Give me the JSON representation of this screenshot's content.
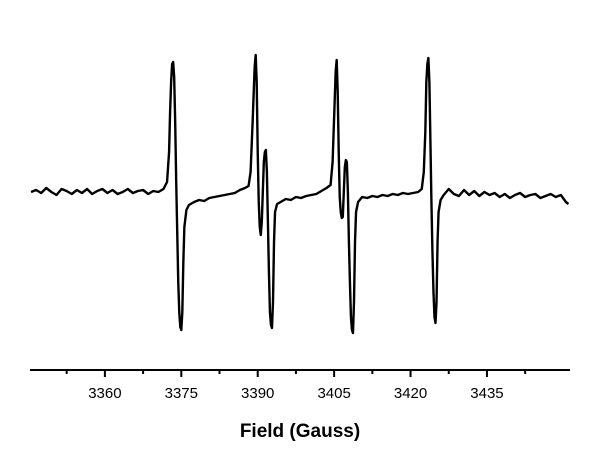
{
  "chart_data": {
    "type": "line",
    "xlabel": "Field (Gauss)",
    "color": "#000000",
    "xlim": [
      3345.3,
      3451.3
    ],
    "ylim": [
      -1.7,
      1.5
    ],
    "xticks": [
      3360,
      3375,
      3390,
      3405,
      3420,
      3435
    ],
    "xminorticks": [
      3352.5,
      3367.5,
      3382.5,
      3397.5,
      3412.5,
      3427.5,
      3442.5
    ],
    "x": [
      3345.5,
      3346.5,
      3347.5,
      3348.5,
      3349.5,
      3350.5,
      3351.5,
      3352.5,
      3353.5,
      3354.5,
      3355.5,
      3356.5,
      3357.5,
      3358.5,
      3359.5,
      3360.5,
      3361.5,
      3362.5,
      3363.5,
      3364.5,
      3365.5,
      3366.5,
      3367.5,
      3368.5,
      3369.5,
      3370.5,
      3371.5,
      3372.2,
      3372.6,
      3372.8,
      3373.0,
      3373.2,
      3373.4,
      3373.6,
      3373.8,
      3374.0,
      3374.2,
      3374.4,
      3374.6,
      3374.8,
      3375.0,
      3375.2,
      3375.4,
      3375.6,
      3376.0,
      3376.5,
      3377.5,
      3378.5,
      3379.5,
      3380.5,
      3381.5,
      3382.5,
      3383.5,
      3384.5,
      3385.5,
      3386.5,
      3387.5,
      3388.2,
      3388.6,
      3389.0,
      3389.4,
      3389.6,
      3389.8,
      3390.0,
      3390.2,
      3390.4,
      3390.6,
      3390.8,
      3391.0,
      3391.2,
      3391.4,
      3391.6,
      3391.8,
      3392.0,
      3392.2,
      3392.4,
      3392.6,
      3392.8,
      3393.0,
      3393.2,
      3393.4,
      3393.8,
      3394.5,
      3395.5,
      3396.5,
      3397.5,
      3398.5,
      3399.5,
      3400.5,
      3401.5,
      3402.5,
      3403.5,
      3404.3,
      3404.7,
      3405.1,
      3405.3,
      3405.5,
      3405.7,
      3405.9,
      3406.1,
      3406.3,
      3406.5,
      3406.7,
      3406.9,
      3407.1,
      3407.3,
      3407.5,
      3407.7,
      3407.9,
      3408.1,
      3408.3,
      3408.5,
      3408.7,
      3408.9,
      3409.1,
      3409.3,
      3409.7,
      3410.5,
      3411.5,
      3412.5,
      3413.5,
      3414.5,
      3415.5,
      3416.5,
      3417.5,
      3418.5,
      3419.5,
      3420.5,
      3421.5,
      3422.2,
      3422.6,
      3422.9,
      3423.1,
      3423.3,
      3423.5,
      3423.7,
      3423.9,
      3424.1,
      3424.3,
      3424.5,
      3424.7,
      3424.9,
      3425.1,
      3425.3,
      3425.5,
      3425.9,
      3426.5,
      3427.5,
      3428.5,
      3429.5,
      3430.5,
      3431.5,
      3432.5,
      3433.5,
      3434.5,
      3435.5,
      3436.5,
      3437.5,
      3438.5,
      3439.5,
      3440.5,
      3441.5,
      3442.5,
      3443.5,
      3444.5,
      3445.5,
      3446.5,
      3447.5,
      3448.5,
      3449.5,
      3450.5,
      3451.0
    ],
    "values": [
      0,
      0.02,
      -0.01,
      0.04,
      0,
      -0.03,
      0.03,
      0.01,
      -0.02,
      0.02,
      -0.01,
      0.03,
      -0.02,
      0.01,
      0.03,
      -0.01,
      0.02,
      -0.02,
      0,
      0.03,
      -0.01,
      0.01,
      0.02,
      -0.02,
      0.01,
      0,
      0.03,
      0.1,
      0.4,
      0.8,
      1.1,
      1.28,
      1.3,
      1.15,
      0.7,
      0.1,
      -0.4,
      -0.9,
      -1.2,
      -1.35,
      -1.38,
      -1.2,
      -0.7,
      -0.35,
      -0.18,
      -0.13,
      -0.1,
      -0.08,
      -0.09,
      -0.06,
      -0.05,
      -0.04,
      -0.03,
      -0.02,
      -0.01,
      0.02,
      0.04,
      0.06,
      0.2,
      0.7,
      1.25,
      1.37,
      1.1,
      0.4,
      -0.1,
      -0.35,
      -0.43,
      -0.3,
      0,
      0.3,
      0.4,
      0.42,
      0.2,
      -0.3,
      -0.8,
      -1.2,
      -1.33,
      -1.36,
      -1.1,
      -0.5,
      -0.2,
      -0.12,
      -0.1,
      -0.07,
      -0.08,
      -0.05,
      -0.06,
      -0.04,
      -0.03,
      -0.02,
      0.01,
      0.04,
      0.07,
      0.3,
      0.9,
      1.2,
      1.32,
      1.0,
      0.4,
      -0.05,
      -0.2,
      -0.26,
      -0.25,
      0,
      0.25,
      0.32,
      0.3,
      0,
      -0.5,
      -0.9,
      -1.25,
      -1.38,
      -1.41,
      -1.1,
      -0.5,
      -0.2,
      -0.1,
      -0.05,
      -0.06,
      -0.04,
      -0.05,
      -0.03,
      -0.04,
      -0.02,
      -0.03,
      -0.01,
      -0.02,
      -0.01,
      0,
      0.03,
      0.2,
      0.6,
      1.1,
      1.28,
      1.34,
      1.1,
      0.5,
      -0.1,
      -0.6,
      -1.0,
      -1.25,
      -1.31,
      -1.1,
      -0.5,
      -0.2,
      -0.08,
      -0.03,
      0.03,
      -0.02,
      -0.04,
      0.02,
      -0.03,
      0.01,
      -0.04,
      0,
      -0.03,
      -0.01,
      -0.05,
      -0.02,
      -0.06,
      -0.03,
      -0.01,
      -0.05,
      -0.03,
      -0.02,
      -0.06,
      -0.04,
      -0.02,
      -0.05,
      -0.03,
      -0.1,
      -0.12
    ]
  }
}
